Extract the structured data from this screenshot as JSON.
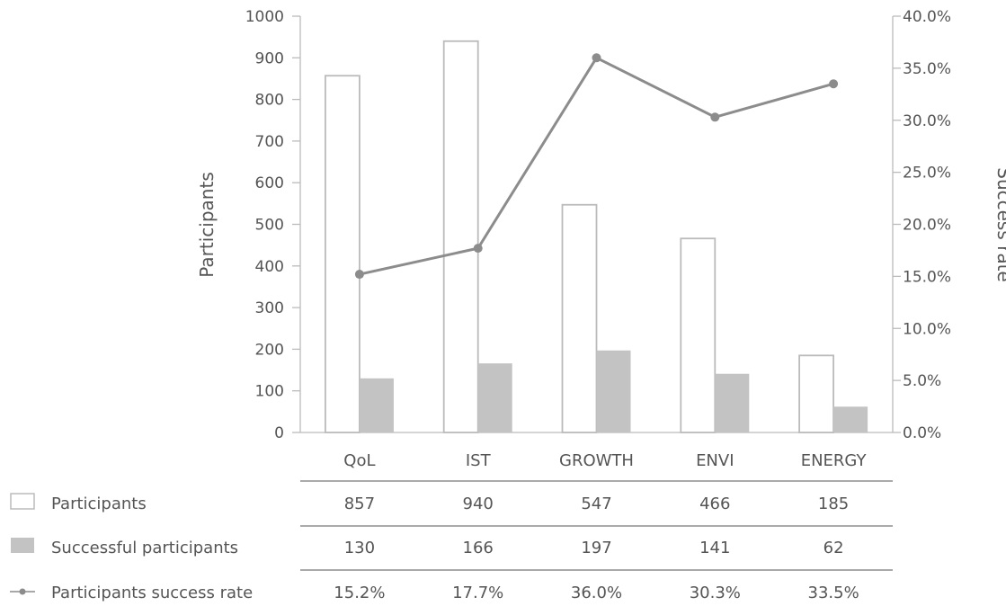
{
  "chart_data": {
    "type": "bar",
    "categories": [
      "QoL",
      "IST",
      "GROWTH",
      "ENVI",
      "ENERGY"
    ],
    "series": [
      {
        "name": "Participants",
        "type": "bar",
        "axis": "left",
        "style": "outline",
        "values": [
          857,
          940,
          547,
          466,
          185
        ],
        "labels": [
          "857",
          "940",
          "547",
          "466",
          "185"
        ]
      },
      {
        "name": "Successful participants",
        "type": "bar",
        "axis": "left",
        "style": "filled",
        "values": [
          130,
          166,
          197,
          141,
          62
        ],
        "labels": [
          "130",
          "166",
          "197",
          "141",
          "62"
        ]
      },
      {
        "name": "Participants success rate",
        "type": "line",
        "axis": "right",
        "values": [
          15.2,
          17.7,
          36.0,
          30.3,
          33.5
        ],
        "labels": [
          "15.2%",
          "17.7%",
          "36.0%",
          "30.3%",
          "33.5%"
        ]
      }
    ],
    "ylabel": "Participants",
    "ylabel_right": "Success rate",
    "ylim": [
      0,
      1000
    ],
    "ylim_right": [
      0,
      40
    ],
    "yticks": [
      "0",
      "100",
      "200",
      "300",
      "400",
      "500",
      "600",
      "700",
      "800",
      "900",
      "1000"
    ],
    "yticks_right": [
      "0.0%",
      "5.0%",
      "10.0%",
      "15.0%",
      "20.0%",
      "25.0%",
      "30.0%",
      "35.0%",
      "40.0%"
    ],
    "grid": false,
    "legend_placement": "left data table",
    "colors": {
      "axis": "#bbbbbb",
      "outline_bar": "#bbbbbb",
      "filled_bar": "#c3c3c3",
      "line": "#8c8c8c",
      "text": "#555555"
    }
  }
}
